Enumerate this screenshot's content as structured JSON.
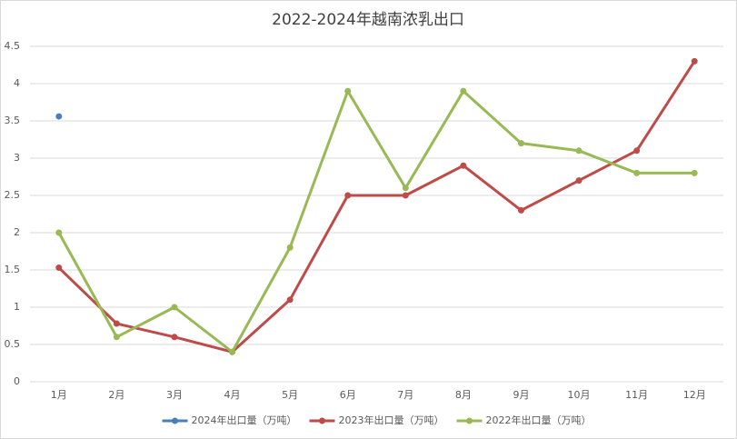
{
  "chart_data": {
    "type": "line",
    "title": "2022-2024年越南浓乳出口",
    "categories": [
      "1月",
      "2月",
      "3月",
      "4月",
      "5月",
      "6月",
      "7月",
      "8月",
      "9月",
      "10月",
      "11月",
      "12月"
    ],
    "series": [
      {
        "name": "2024年出口量（万吨）",
        "color": "#4a7ebb",
        "values": [
          3.56,
          null,
          null,
          null,
          null,
          null,
          null,
          null,
          null,
          null,
          null,
          null
        ]
      },
      {
        "name": "2023年出口量（万吨）",
        "color": "#be4b48",
        "values": [
          1.53,
          0.78,
          0.6,
          0.4,
          1.1,
          2.5,
          2.5,
          2.9,
          2.3,
          2.7,
          3.1,
          4.3
        ]
      },
      {
        "name": "2022年出口量（万吨）",
        "color": "#98b954",
        "values": [
          2,
          0.6,
          1,
          0.4,
          1.8,
          3.9,
          2.6,
          3.9,
          3.2,
          3.1,
          2.8,
          2.8
        ]
      }
    ],
    "ylim": [
      0,
      4.5
    ],
    "yticks": [
      0,
      0.5,
      1,
      1.5,
      2,
      2.5,
      3,
      3.5,
      4,
      4.5
    ],
    "grid": true,
    "legend": "bottom"
  }
}
